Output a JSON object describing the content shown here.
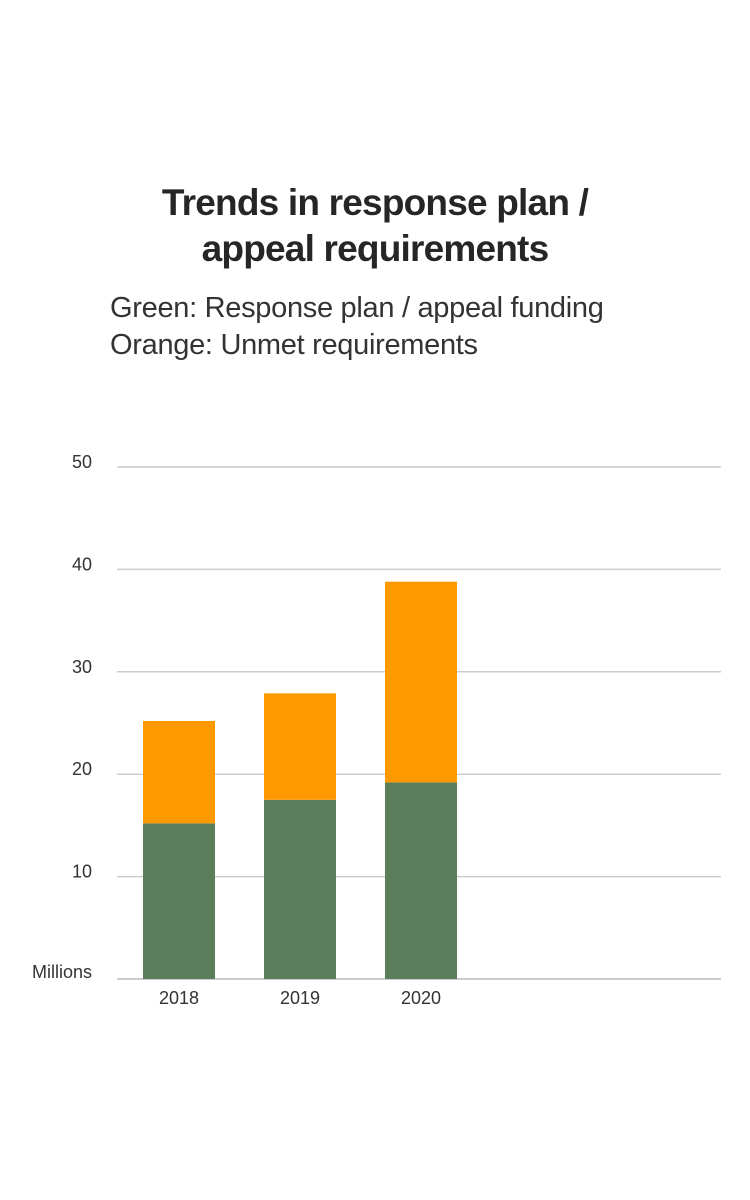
{
  "chart_data": {
    "type": "bar",
    "stacked": true,
    "title": "Trends in response plan / appeal requirements",
    "subtitle_lines": [
      "Green: Response plan / appeal funding",
      "Orange: Unmet requirements"
    ],
    "categories": [
      "2018",
      "2019",
      "2020"
    ],
    "series": [
      {
        "name": "Response plan / appeal funding",
        "values": [
          15.2,
          17.5,
          19.2
        ],
        "color": "#5a7f5a"
      },
      {
        "name": "Unmet requirements",
        "values": [
          10.0,
          10.4,
          19.6
        ],
        "color": "#ff9900"
      }
    ],
    "ylabel": "Millions",
    "ylim": [
      0,
      50
    ],
    "yticks": [
      10,
      20,
      30,
      40,
      50
    ],
    "grid": true,
    "colors": {
      "grid": "#cccccc",
      "axis": "#bbbbbb"
    }
  }
}
